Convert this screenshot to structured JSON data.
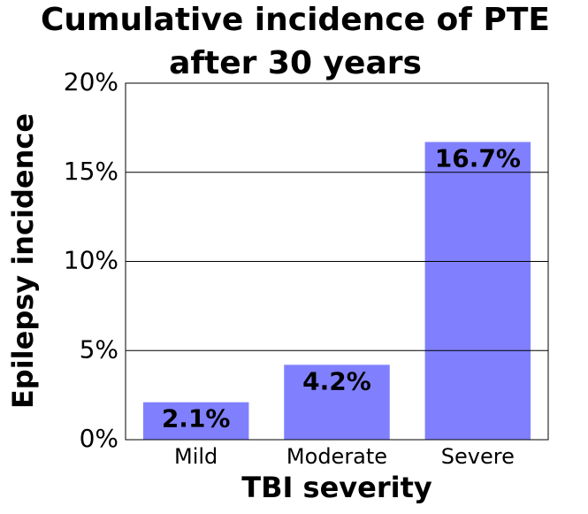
{
  "chart_data": {
    "type": "bar",
    "title": [
      "Cumulative incidence of PTE",
      "after 30 years"
    ],
    "x_label": "TBI severity",
    "y_label": "Epilepsy incidence",
    "categories": [
      "Mild",
      "Moderate",
      "Severe"
    ],
    "values": [
      2.1,
      4.2,
      16.7
    ],
    "value_labels": [
      "2.1%",
      "4.2%",
      "16.7%"
    ],
    "color": "#8080ff",
    "ylim": [
      0,
      20
    ],
    "yticks": [
      {
        "value": 0,
        "label": "0%"
      },
      {
        "value": 5,
        "label": "5%"
      },
      {
        "value": 10,
        "label": "10%"
      },
      {
        "value": 15,
        "label": "15%"
      },
      {
        "value": 20,
        "label": "20%"
      }
    ],
    "grid": true
  }
}
